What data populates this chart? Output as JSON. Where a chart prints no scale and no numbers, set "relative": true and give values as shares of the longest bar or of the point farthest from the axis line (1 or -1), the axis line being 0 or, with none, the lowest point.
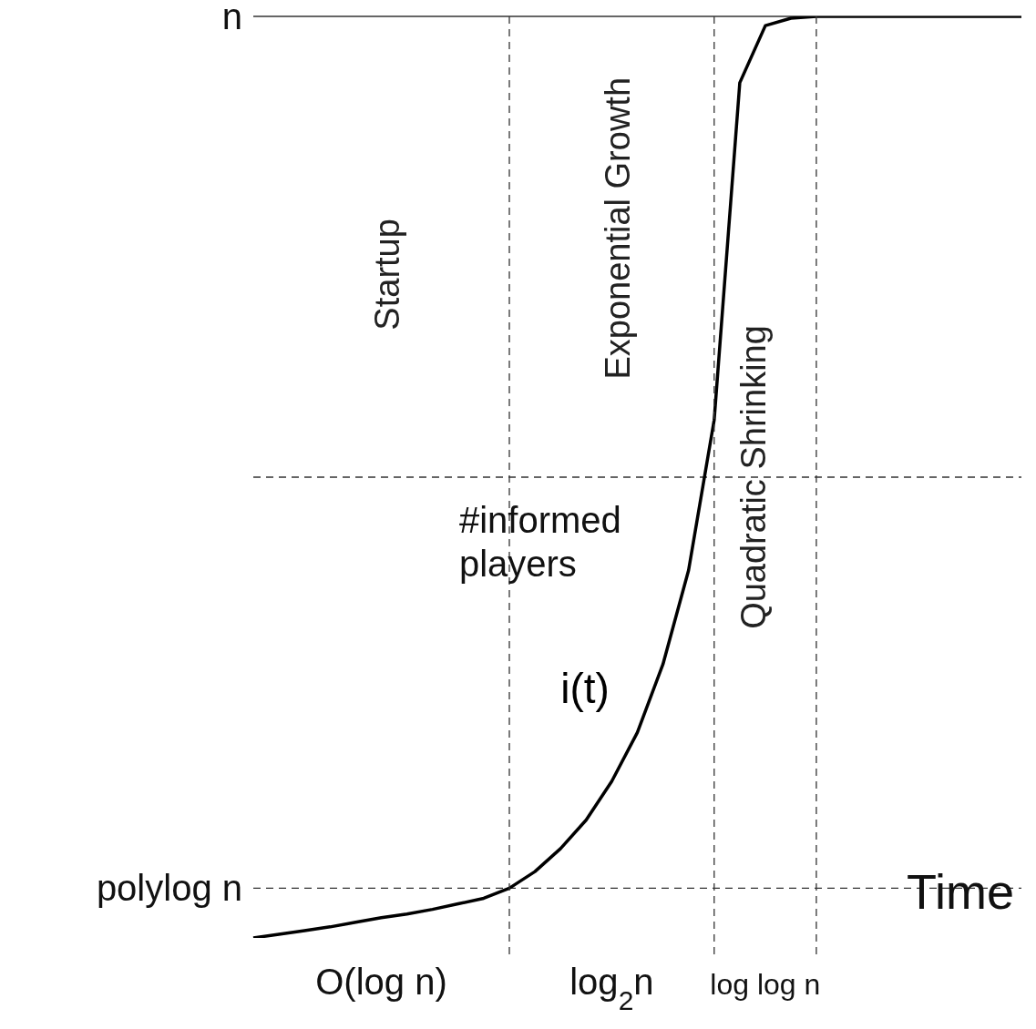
{
  "chart_data": {
    "type": "line",
    "relative": true,
    "xlabel": "Time",
    "ylabel": "#informed players",
    "marker": "none",
    "line_style": "solid",
    "grid": true,
    "categories": [
      null,
      null,
      null,
      null,
      null,
      null,
      null,
      null,
      null,
      null,
      null,
      null,
      null,
      null,
      null,
      null,
      null,
      null,
      null,
      null,
      null,
      null,
      null,
      null,
      null,
      null,
      null,
      null,
      null,
      null,
      null
    ],
    "series": [
      {
        "name": "i(t)",
        "color": "#000000",
        "values": [
          0,
          0.004,
          0.008,
          0.012,
          0.017,
          0.022,
          0.026,
          0.031,
          0.037,
          0.043,
          0.054,
          0.072,
          0.097,
          0.128,
          0.17,
          0.223,
          0.297,
          0.399,
          0.562,
          0.928,
          0.99,
          0.998,
          1,
          1,
          1,
          1,
          1,
          1,
          1,
          1,
          1
        ]
      }
    ],
    "ref_lines": [
      {
        "axis": "y",
        "value": 0.5,
        "line_style": "dashed"
      },
      {
        "axis": "y",
        "value": 0.054,
        "label": "polylog n",
        "line_style": "dashed"
      },
      {
        "axis": "y",
        "value": 1,
        "label": "n",
        "line_style": "solid"
      }
    ],
    "annotations": [
      "Startup",
      "Exponential Growth",
      "Quadratic Shrinking",
      "O(log n)",
      "log$_{2}$n",
      "log log n"
    ]
  }
}
